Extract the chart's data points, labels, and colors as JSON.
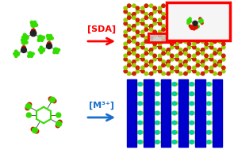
{
  "fig_width": 2.95,
  "fig_height": 1.89,
  "dpi": 100,
  "bg_color": "#ffffff",
  "arrow1_color": "#ff0000",
  "arrow2_color": "#1a6fce",
  "label1_text": "[SDA]",
  "label2_text": "[M³⁺]",
  "label1_color": "#ff0000",
  "label2_color": "#1a6fce",
  "label1_fontsize": 8,
  "label2_fontsize": 8,
  "sda_mol_green": "#33dd00",
  "sda_mol_red": "#dd1100",
  "sda_mol_dark": "#222222",
  "zeolite_line_color": "#993300",
  "zeolite_node_green": "#99cc00",
  "zeolite_node_red": "#cc2200",
  "red_box_color": "#ff0000",
  "inset_bg": "#ffffff",
  "gray_fill": "#c8c8c8",
  "mof_blue": "#0000cc",
  "mof_green": "#aaee00",
  "mof_teal": "#00ccaa"
}
